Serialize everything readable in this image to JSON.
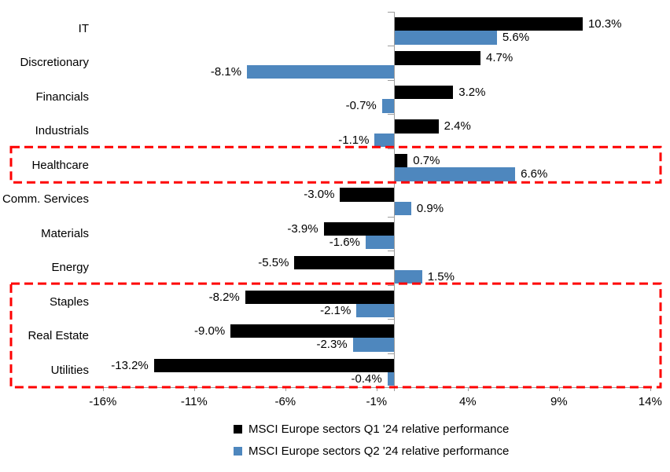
{
  "chart_data": {
    "type": "bar",
    "orientation": "horizontal",
    "title": "",
    "categories": [
      "IT",
      "Discretionary",
      "Financials",
      "Industrials",
      "Healthcare",
      "Comm. Services",
      "Materials",
      "Energy",
      "Staples",
      "Real Estate",
      "Utilities"
    ],
    "series": [
      {
        "name": "MSCI Europe sectors Q1 '24 relative performance",
        "color": "#000000",
        "values": [
          10.3,
          4.7,
          3.2,
          2.4,
          0.7,
          -3.0,
          -3.9,
          -5.5,
          -8.2,
          -9.0,
          -13.2
        ]
      },
      {
        "name": "MSCI Europe sectors Q2 '24 relative performance",
        "color": "#4e87be",
        "values": [
          5.6,
          -8.1,
          -0.7,
          -1.1,
          6.6,
          0.9,
          -1.6,
          1.5,
          -2.1,
          -2.3,
          -0.4
        ]
      }
    ],
    "value_label_format": "one_decimal_percent",
    "x_axis": {
      "range": [
        -16,
        14
      ],
      "ticks": [
        -16,
        -11,
        -6,
        -1,
        4,
        9,
        14
      ],
      "tick_labels": [
        "-16%",
        "-11%",
        "-6%",
        "-1%",
        "4%",
        "9%",
        "14%"
      ]
    },
    "grid": "off",
    "legend_position": "bottom",
    "axis_color": "#9d9d9d",
    "highlights": [
      {
        "name": "healthcare-highlight",
        "first_category": "Healthcare",
        "last_category": "Healthcare",
        "color": "#fe0000",
        "style": "dashed"
      },
      {
        "name": "defensives-highlight",
        "first_category": "Staples",
        "last_category": "Utilities",
        "color": "#fe0000",
        "style": "dashed"
      }
    ]
  }
}
